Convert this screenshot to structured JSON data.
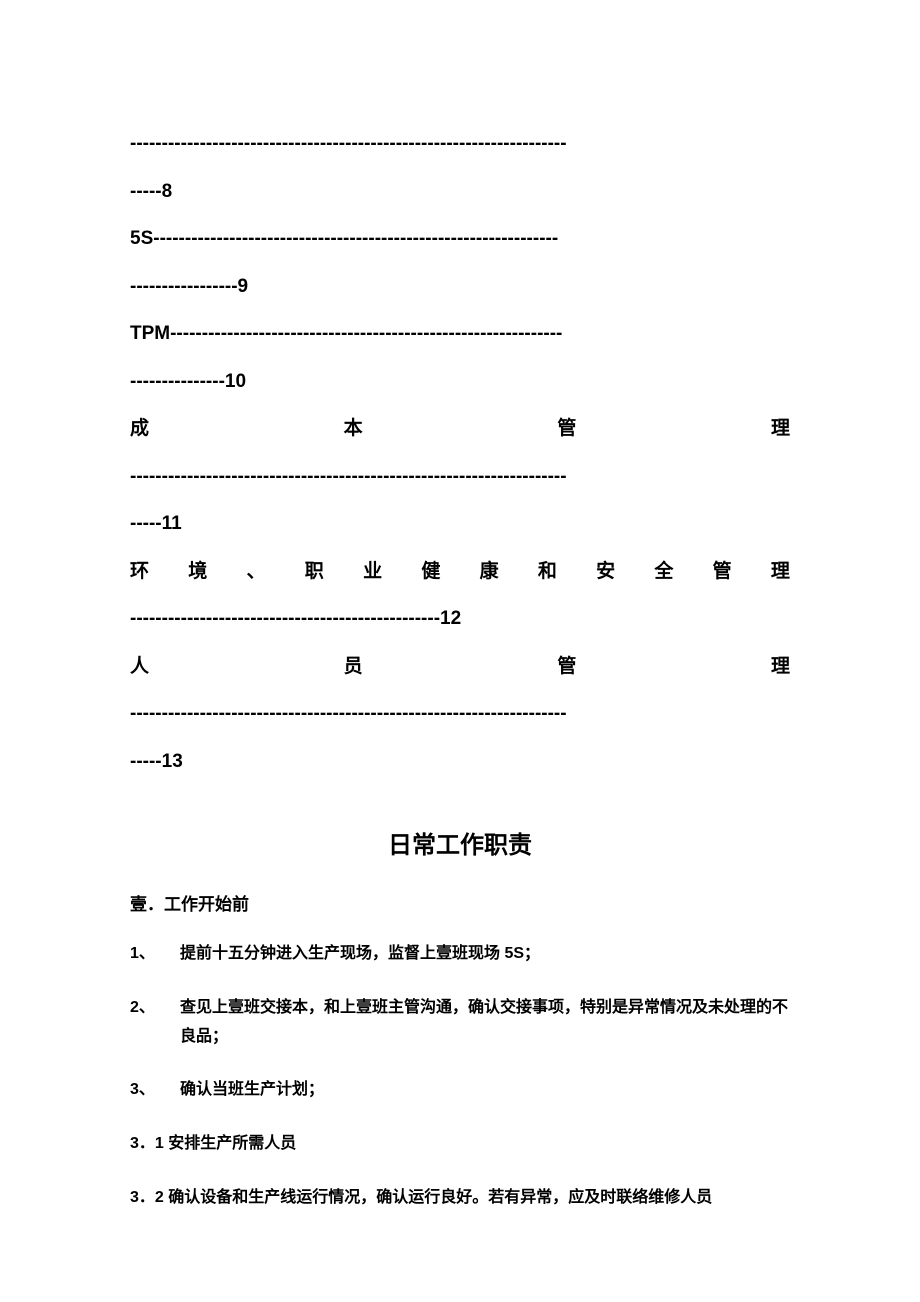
{
  "toc": {
    "line1": "---------------------------------------------------------------------",
    "line2": "-----8",
    "line3": "5S----------------------------------------------------------------",
    "line4": "-----------------9",
    "line5": "TPM--------------------------------------------------------------",
    "line6": "---------------10",
    "item_cost": {
      "chars": [
        "成",
        "本",
        "管",
        "理"
      ]
    },
    "line7": "---------------------------------------------------------------------",
    "line8": "-----11",
    "item_ehs": {
      "chars": [
        "环",
        "境",
        "、",
        "职",
        "业",
        "健",
        "康",
        "和",
        "安",
        "全",
        "管",
        "理"
      ]
    },
    "line9": "-------------------------------------------------12",
    "item_staff": {
      "chars": [
        "人",
        "员",
        "管",
        "理"
      ]
    },
    "line10": "---------------------------------------------------------------------",
    "line11": "-----13"
  },
  "section_title": "日常工作职责",
  "subsection": "壹．工作开始前",
  "items": [
    {
      "num": "1、",
      "text": "提前十五分钟进入生产现场，监督上壹班现场 5S；"
    },
    {
      "num": "2、",
      "text": "查见上壹班交接本，和上壹班主管沟通，确认交接事项，特别是异常情况及未处理的不良品；"
    },
    {
      "num": "3、",
      "text": "确认当班生产计划；"
    }
  ],
  "sub_items": [
    "3．1 安排生产所需人员",
    "3．2 确认设备和生产线运行情况，确认运行良好。若有异常，应及时联络维修人员"
  ],
  "style": {
    "background_color": "#ffffff",
    "text_color": "#000000",
    "toc_fontsize": 19,
    "title_fontsize": 24,
    "body_fontsize": 16,
    "font_weight": "bold"
  }
}
